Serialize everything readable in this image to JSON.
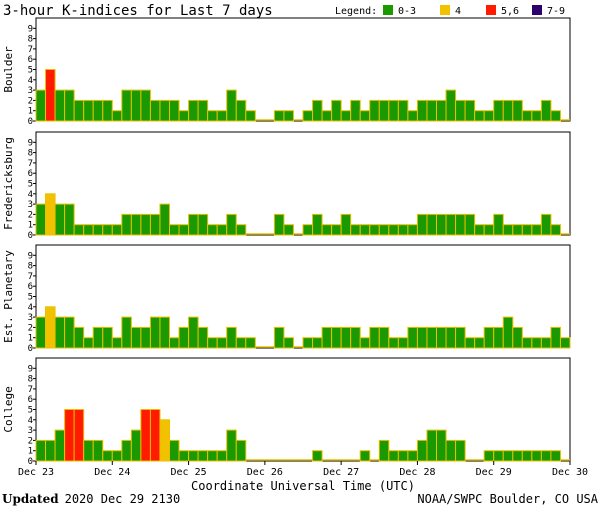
{
  "chart_data": {
    "type": "bar",
    "title": "3-hour K-indices for Last 7 days",
    "legend": {
      "label": "Legend:",
      "entries": [
        {
          "label": "0-3",
          "color": "#1a9a00"
        },
        {
          "label": "4",
          "color": "#f2c200"
        },
        {
          "label": "5,6",
          "color": "#ff1a00"
        },
        {
          "label": "7-9",
          "color": "#2e006e"
        }
      ],
      "placement": "top-right"
    },
    "bar_outline": "#e8c000",
    "ylim": [
      0,
      9
    ],
    "yticks": [
      "0",
      "1",
      "2",
      "3",
      "4",
      "5",
      "6",
      "7",
      "8",
      "9"
    ],
    "x_ticks": [
      "Dec 23",
      "Dec 24",
      "Dec 25",
      "Dec 26",
      "Dec 27",
      "Dec 28",
      "Dec 29",
      "Dec 30"
    ],
    "xlabel": "Coordinate Universal Time (UTC)",
    "panels": [
      {
        "name": "Boulder",
        "values": [
          3,
          5,
          3,
          3,
          2,
          2,
          2,
          2,
          1,
          3,
          3,
          3,
          2,
          2,
          2,
          1,
          2,
          2,
          1,
          1,
          3,
          2,
          1,
          0,
          0,
          1,
          1,
          0,
          1,
          2,
          1,
          2,
          1,
          2,
          1,
          2,
          2,
          2,
          2,
          1,
          2,
          2,
          2,
          3,
          2,
          2,
          1,
          1,
          2,
          2,
          2,
          1,
          1,
          2,
          1,
          0
        ]
      },
      {
        "name": "Fredericksburg",
        "values": [
          3,
          4,
          3,
          3,
          1,
          1,
          1,
          1,
          1,
          2,
          2,
          2,
          2,
          3,
          1,
          1,
          2,
          2,
          1,
          1,
          2,
          1,
          0,
          0,
          0,
          2,
          1,
          0,
          1,
          2,
          1,
          1,
          2,
          1,
          1,
          1,
          1,
          1,
          1,
          1,
          2,
          2,
          2,
          2,
          2,
          2,
          1,
          1,
          2,
          1,
          1,
          1,
          1,
          2,
          1,
          0
        ]
      },
      {
        "name": "Est. Planetary",
        "values": [
          3,
          4,
          3,
          3,
          2,
          1,
          2,
          2,
          1,
          3,
          2,
          2,
          3,
          3,
          1,
          2,
          3,
          2,
          1,
          1,
          2,
          1,
          1,
          0,
          0,
          2,
          1,
          0,
          1,
          1,
          2,
          2,
          2,
          2,
          1,
          2,
          2,
          1,
          1,
          2,
          2,
          2,
          2,
          2,
          2,
          1,
          1,
          2,
          2,
          3,
          2,
          1,
          1,
          1,
          2,
          1
        ]
      },
      {
        "name": "College",
        "values": [
          2,
          2,
          3,
          5,
          5,
          2,
          2,
          1,
          1,
          2,
          3,
          5,
          5,
          4,
          2,
          1,
          1,
          1,
          1,
          1,
          3,
          2,
          0,
          0,
          0,
          0,
          0,
          0,
          0,
          1,
          0,
          0,
          0,
          0,
          1,
          0,
          2,
          1,
          1,
          1,
          2,
          3,
          3,
          2,
          2,
          0,
          0,
          1,
          1,
          1,
          1,
          1,
          1,
          1,
          1,
          0
        ]
      }
    ]
  },
  "footer": {
    "updated_label": "Updated",
    "updated_value": "2020 Dec 29 2130",
    "source": "NOAA/SWPC Boulder, CO USA"
  }
}
